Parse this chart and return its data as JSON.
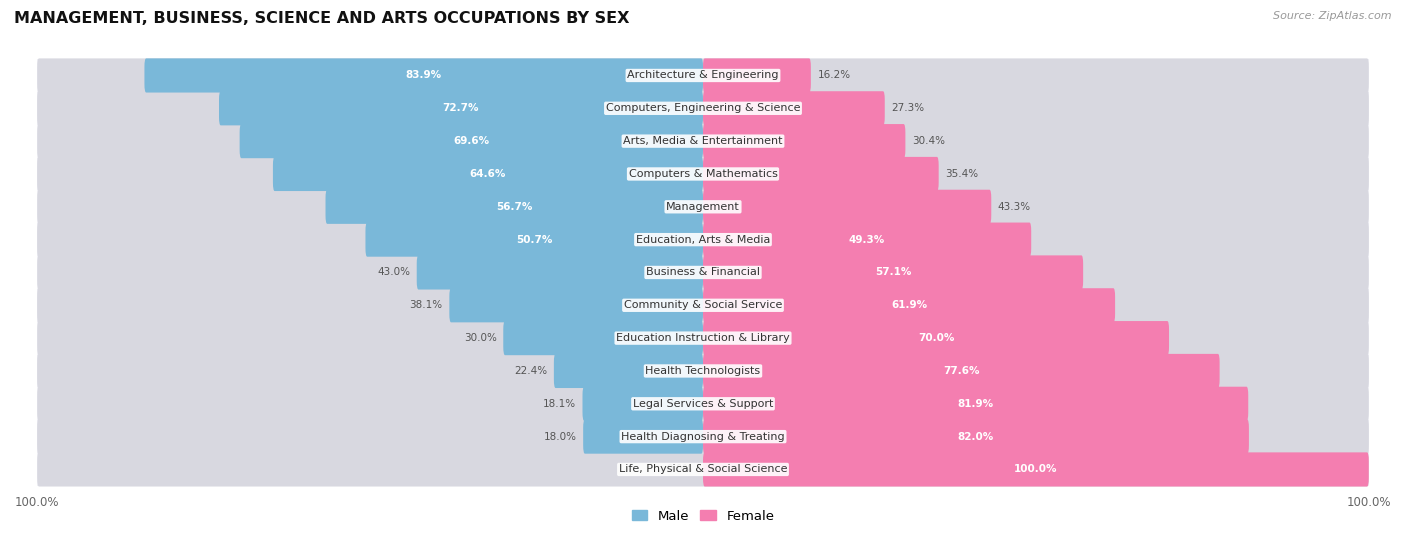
{
  "title": "MANAGEMENT, BUSINESS, SCIENCE AND ARTS OCCUPATIONS BY SEX",
  "source": "Source: ZipAtlas.com",
  "categories": [
    "Architecture & Engineering",
    "Computers, Engineering & Science",
    "Arts, Media & Entertainment",
    "Computers & Mathematics",
    "Management",
    "Education, Arts & Media",
    "Business & Financial",
    "Community & Social Service",
    "Education Instruction & Library",
    "Health Technologists",
    "Legal Services & Support",
    "Health Diagnosing & Treating",
    "Life, Physical & Social Science"
  ],
  "male_pct": [
    83.9,
    72.7,
    69.6,
    64.6,
    56.7,
    50.7,
    43.0,
    38.1,
    30.0,
    22.4,
    18.1,
    18.0,
    0.0
  ],
  "female_pct": [
    16.2,
    27.3,
    30.4,
    35.4,
    43.3,
    49.3,
    57.1,
    61.9,
    70.0,
    77.6,
    81.9,
    82.0,
    100.0
  ],
  "male_color": "#7ab8d9",
  "female_color": "#f47eb0",
  "track_color": "#d8d8e0",
  "row_bg_colors": [
    "#f0f0f5",
    "#e8e8ef"
  ],
  "title_fontsize": 11.5,
  "label_fontsize": 8.0,
  "pct_fontsize": 7.5,
  "legend_fontsize": 9.5,
  "bar_height": 0.52,
  "figsize": [
    14.06,
    5.59
  ],
  "dpi": 100
}
